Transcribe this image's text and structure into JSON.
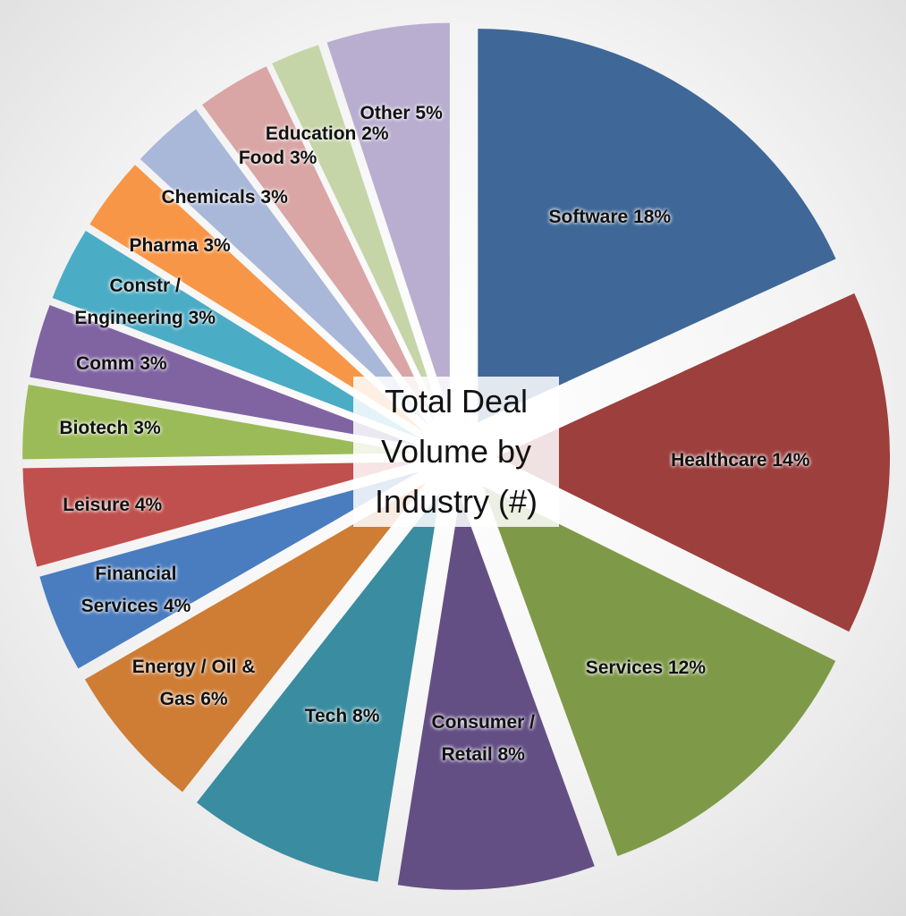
{
  "chart_data": {
    "type": "pie",
    "title": "Total Deal Volume by Industry (#)",
    "categories": [
      "Software",
      "Healthcare",
      "Services",
      "Consumer / Retail",
      "Tech",
      "Energy / Oil & Gas",
      "Financial Services",
      "Leisure",
      "Biotech",
      "Comm",
      "Constr / Engineering",
      "Pharma",
      "Chemicals",
      "Food",
      "Education",
      "Other"
    ],
    "values": [
      18,
      14,
      12,
      8,
      8,
      6,
      4,
      4,
      3,
      3,
      3,
      3,
      3,
      3,
      2,
      5
    ],
    "value_labels": [
      "18%",
      "14%",
      "12%",
      "8%",
      "8%",
      "6%",
      "4%",
      "4%",
      "3%",
      "3%",
      "3%",
      "3%",
      "3%",
      "3%",
      "2%",
      "5%"
    ],
    "colors": [
      "#3f6797",
      "#9c3f3d",
      "#7e9a48",
      "#644f85",
      "#3a8ca0",
      "#cf7c35",
      "#4a7cc0",
      "#c0504d",
      "#9bbb59",
      "#8064a2",
      "#4bacc6",
      "#f79646",
      "#a9b8d9",
      "#d9a6a5",
      "#c6d5a8",
      "#b9aed0"
    ]
  }
}
